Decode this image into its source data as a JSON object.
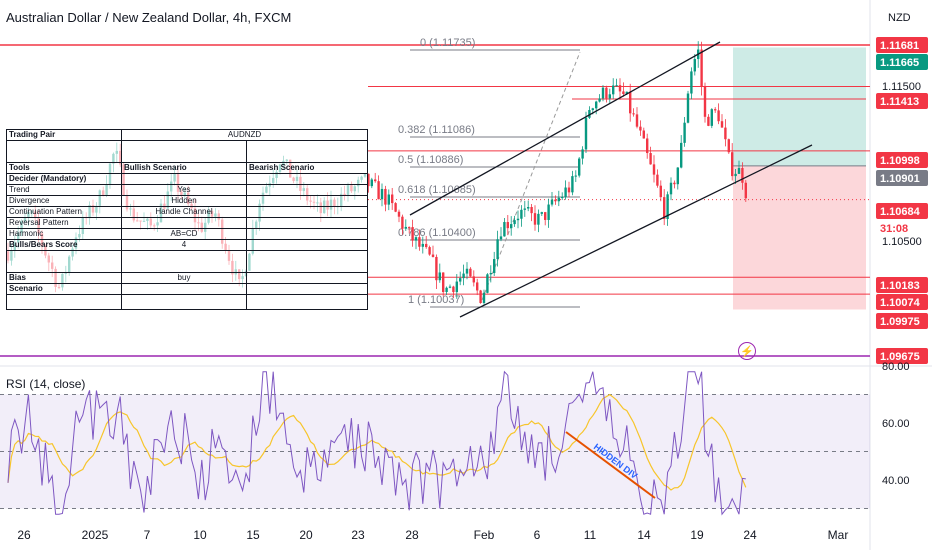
{
  "title": "Australian Dollar / New Zealand Dollar, 4h, FXCM",
  "currency": "NZD",
  "rsi_title": "RSI (14, close)",
  "table": {
    "pair_label": "Trading Pair",
    "pair_value": "AUDNZD",
    "tools_label": "Tools",
    "bullish_header": "Bullish Scenario",
    "bearish_header": "Bearish Scenario",
    "rows": [
      {
        "label": "Decider (Mandatory)",
        "bull": "",
        "bear": ""
      },
      {
        "label": "Trend",
        "bull": "Yes",
        "bear": ""
      },
      {
        "label": "Divergence",
        "bull": "Hidden",
        "bear": ""
      },
      {
        "label": "Continuation Pattern",
        "bull": "Handle Channel",
        "bear": ""
      },
      {
        "label": "Reversal Pattern",
        "bull": "",
        "bear": ""
      },
      {
        "label": "Harmonic",
        "bull": "AB=CD",
        "bear": ""
      },
      {
        "label": "Bulls/Bears Score",
        "bull": "4",
        "bear": ""
      }
    ],
    "bias_label": "Bias",
    "bias_value": "buy",
    "scenario_label": "Scenario"
  },
  "chart_data": {
    "type": "candlestick",
    "x_ticks": [
      "26",
      "2025",
      "7",
      "10",
      "15",
      "20",
      "23",
      "28",
      "Feb",
      "6",
      "11",
      "14",
      "19",
      "24",
      "Mar"
    ],
    "price_axis_ticks": [
      "1.11500",
      "1.10500"
    ],
    "price_labels": [
      {
        "value": "1.11681",
        "color": "#f23645"
      },
      {
        "value": "1.11665",
        "color": "#089981"
      },
      {
        "value": "1.11413",
        "color": "#f23645"
      },
      {
        "value": "1.10998",
        "color": "#f23645"
      },
      {
        "value": "1.10901",
        "color": "#787b86"
      },
      {
        "value": "1.10684",
        "color": "#f23645"
      },
      {
        "value": "31:08",
        "color": "#f23645"
      },
      {
        "value": "1.10183",
        "color": "#f23645"
      },
      {
        "value": "1.10074",
        "color": "#f23645"
      },
      {
        "value": "1.09975",
        "color": "#f23645"
      },
      {
        "value": "1.09675",
        "color": "#f23645"
      }
    ],
    "fib_levels": [
      {
        "ratio": "0",
        "label": "0 (1.11735)",
        "price": 1.11735
      },
      {
        "ratio": "0.382",
        "label": "0.382 (1.11086)",
        "price": 1.11086
      },
      {
        "ratio": "0.5",
        "label": "0.5 (1.10886)",
        "price": 1.10886
      },
      {
        "ratio": "0.618",
        "label": "0.618 (1.10685)",
        "price": 1.10685
      },
      {
        "ratio": "0.786",
        "label": "0.786 (1.10400)",
        "price": 1.104
      },
      {
        "ratio": "1",
        "label": "1 (1.10037)",
        "price": 1.10037
      }
    ],
    "horizontal_levels": [
      1.11681,
      1.11413,
      1.10998,
      1.10183,
      1.10074,
      1.09675
    ],
    "position": {
      "entry": 1.10901,
      "target": 1.11665,
      "stop": 1.09975
    },
    "current_price": 1.10684,
    "rsi": {
      "ticks": [
        "80.00",
        "60.00",
        "40.00"
      ],
      "upper_band": 70,
      "middle_band": 50,
      "lower_band": 30,
      "annotation": "HIDDEN DIV"
    }
  }
}
